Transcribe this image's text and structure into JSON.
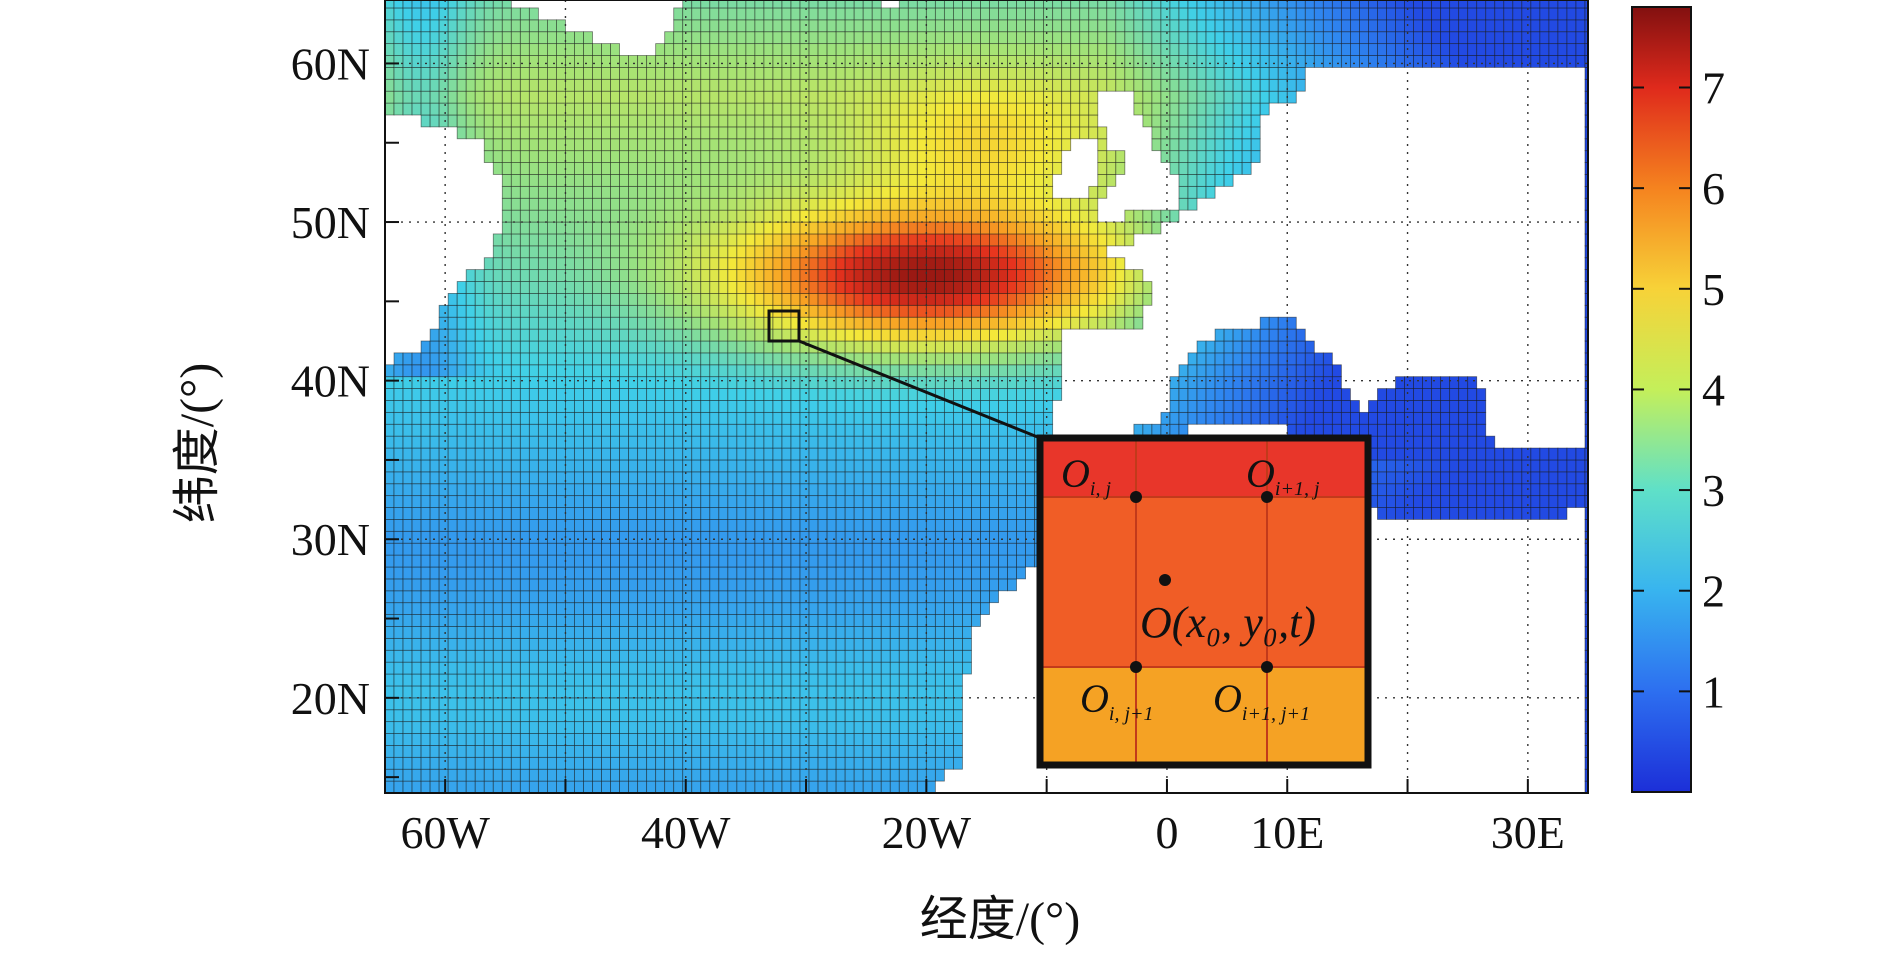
{
  "chart_data": {
    "type": "heatmap",
    "title": "",
    "xlabel": "经度/(°)",
    "ylabel": "纬度/(°)",
    "xlim": [
      -65,
      35
    ],
    "ylim": [
      14,
      64
    ],
    "grid": true,
    "x_ticks": [
      {
        "value": -60,
        "label": "60W"
      },
      {
        "value": -40,
        "label": "40W"
      },
      {
        "value": -20,
        "label": "20W"
      },
      {
        "value": 0,
        "label": "0"
      },
      {
        "value": 10,
        "label": "10E"
      },
      {
        "value": 30,
        "label": "30E"
      }
    ],
    "y_ticks": [
      {
        "value": 20,
        "label": "20N"
      },
      {
        "value": 30,
        "label": "30N"
      },
      {
        "value": 40,
        "label": "40N"
      },
      {
        "value": 50,
        "label": "50N"
      },
      {
        "value": 60,
        "label": "60N"
      }
    ],
    "colorbar": {
      "min": 0,
      "max": 7.8,
      "ticks": [
        {
          "value": 1,
          "label": "1"
        },
        {
          "value": 2,
          "label": "2"
        },
        {
          "value": 3,
          "label": "3"
        },
        {
          "value": 4,
          "label": "4"
        },
        {
          "value": 5,
          "label": "5"
        },
        {
          "value": 6,
          "label": "6"
        },
        {
          "value": 7,
          "label": "7"
        }
      ],
      "colors": [
        "#1f3de0",
        "#2f86f0",
        "#3fd0e8",
        "#9fe27a",
        "#f4e93a",
        "#f8a023",
        "#e6321e",
        "#8a1410"
      ]
    },
    "peak_value": 7.6,
    "inset": {
      "label_top_left_main": "O",
      "label_top_left_sub": "i, j",
      "label_top_right_main": "O",
      "label_top_right_sub": "i+1, j",
      "label_bottom_left_main": "O",
      "label_bottom_left_sub": "i, j+1",
      "label_bottom_right_main": "O",
      "label_bottom_right_sub": "i+1, j+1",
      "label_center": "O(x₀, y₀,t)",
      "color_top": "#e8362a",
      "color_middle": "#f05d26",
      "color_bottom": "#f5a224"
    }
  }
}
